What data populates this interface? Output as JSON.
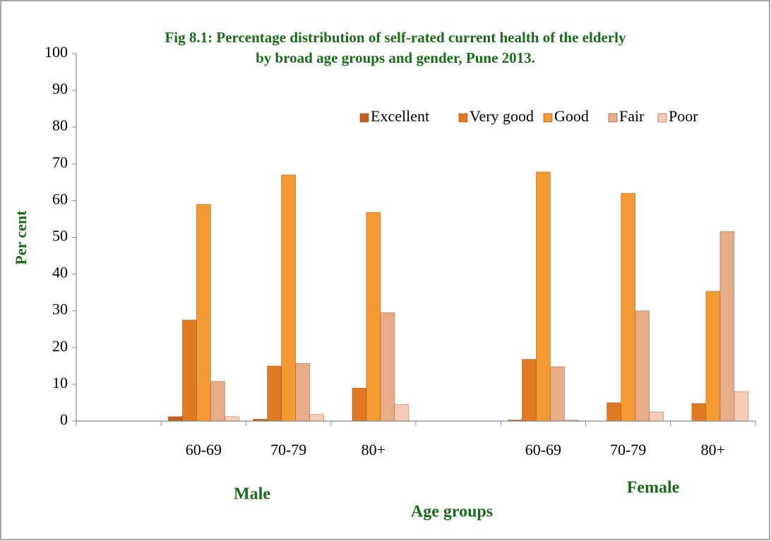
{
  "chart_data": {
    "type": "bar",
    "title": [
      "Fig 8.1: Percentage distribution of self-rated current health of the elderly",
      "by broad age groups and gender, Pune 2013."
    ],
    "y_label": "Per cent",
    "x_label": "Age groups",
    "annotations": [
      "Male",
      "Female"
    ],
    "categories": [
      null,
      "60-69",
      "70-79",
      "80+",
      null,
      "60-69",
      "70-79",
      "80+"
    ],
    "series": [
      {
        "name": "Excellent",
        "color": "#c2611c",
        "values": [
          null,
          1.2,
          0.5,
          0,
          null,
          0.3,
          0,
          0
        ]
      },
      {
        "name": "Very good",
        "color": "#e07a22",
        "values": [
          null,
          27.5,
          15,
          9,
          null,
          16.8,
          5,
          4.8
        ]
      },
      {
        "name": "Good",
        "color": "#f39a33",
        "values": [
          null,
          59,
          67,
          56.8,
          null,
          67.8,
          62,
          35.3
        ]
      },
      {
        "name": "Fair",
        "color": "#e8ad88",
        "values": [
          null,
          10.8,
          15.7,
          29.5,
          null,
          14.8,
          30,
          51.6
        ]
      },
      {
        "name": "Poor",
        "color": "#f5cdb6",
        "values": [
          null,
          1.2,
          1.8,
          4.5,
          null,
          0.3,
          2.5,
          8
        ]
      }
    ],
    "ylim": [
      0,
      100
    ],
    "yticks": [
      0,
      10,
      20,
      30,
      40,
      50,
      60,
      70,
      80,
      90,
      100
    ],
    "grid": false,
    "legend": "top-right"
  }
}
